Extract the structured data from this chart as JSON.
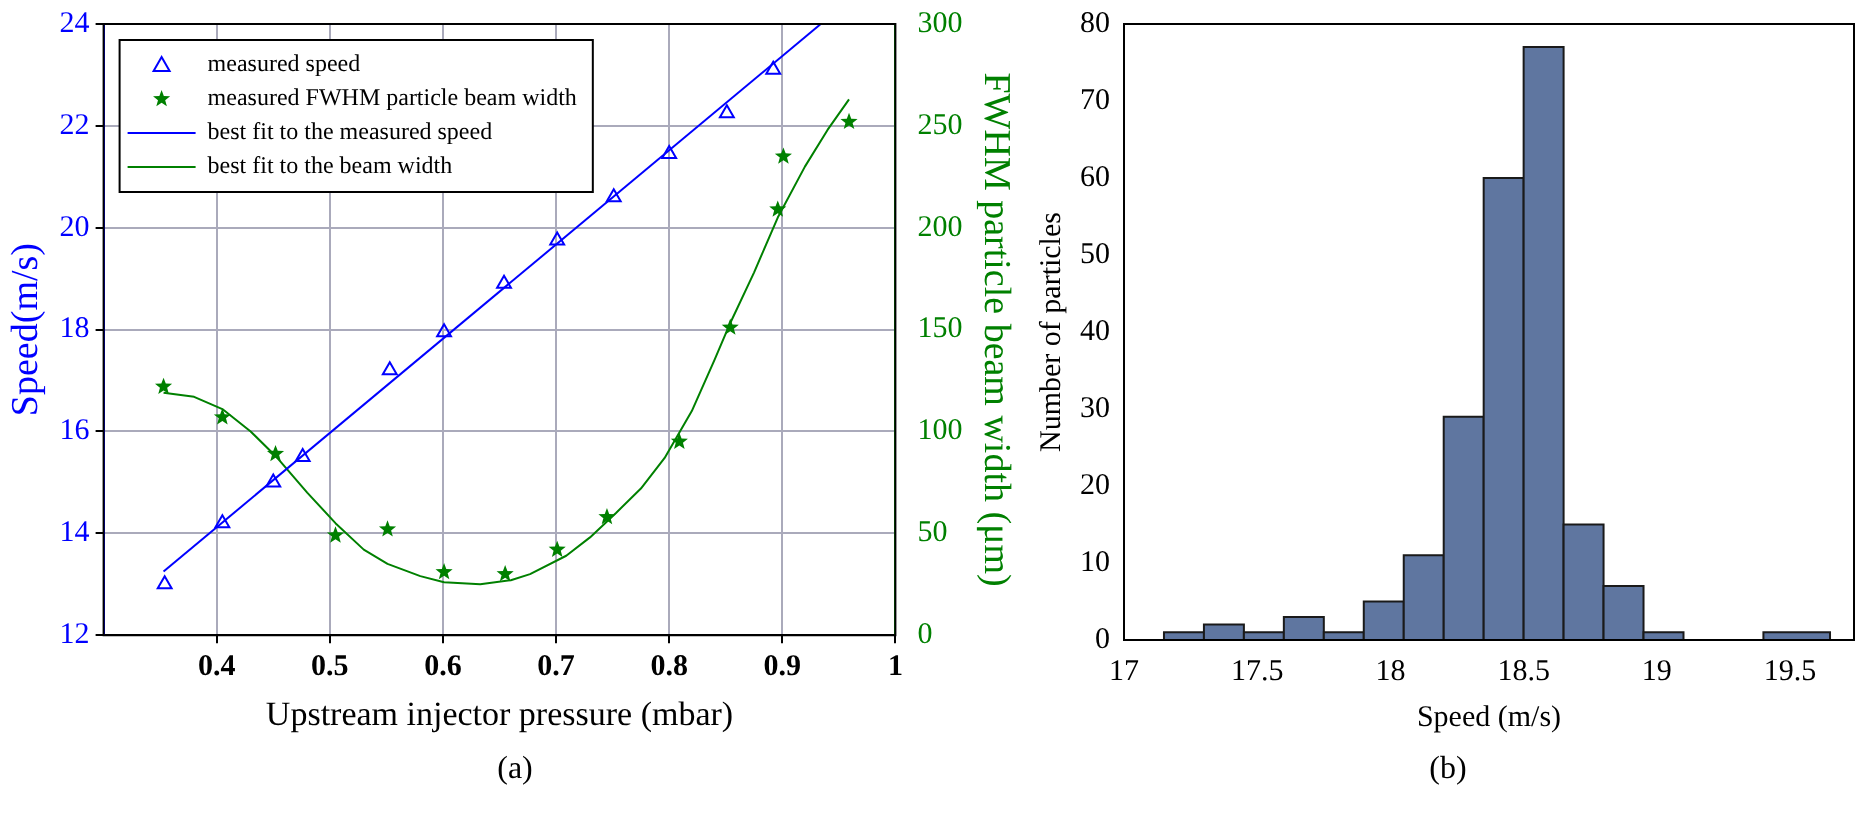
{
  "chart_data": [
    {
      "type": "scatter",
      "xlabel": "Upstream injector pressure (mbar)",
      "ylabel": "Speed(m/s)",
      "y2label": "FWHM particle beam width (μm)",
      "xlim": [
        0.3,
        1
      ],
      "xticks": [
        0.4,
        0.5,
        0.6,
        0.7,
        0.8,
        0.9,
        1
      ],
      "ylim": [
        12,
        24
      ],
      "yticks": [
        12,
        14,
        16,
        18,
        20,
        22,
        24
      ],
      "y2lim": [
        0,
        300
      ],
      "y2ticks": [
        0,
        50,
        100,
        150,
        200,
        250,
        300
      ],
      "grid": true,
      "legend": "top left",
      "annotations": [
        "(a)"
      ],
      "series": [
        {
          "name": "measured speed",
          "type": "scatter",
          "marker": "triangle",
          "color": "#0000ff",
          "x": [
            0.354,
            0.405,
            0.45,
            0.476,
            0.553,
            0.601,
            0.654,
            0.701,
            0.751,
            0.8,
            0.851,
            0.892
          ],
          "values": [
            13.0,
            14.2,
            15.0,
            15.5,
            17.2,
            17.95,
            18.9,
            19.75,
            20.6,
            21.45,
            22.25,
            23.1
          ]
        },
        {
          "name": "measured FWHM particle beam width",
          "type": "scatter",
          "marker": "star",
          "color": "#008000",
          "axis": "y2",
          "x": [
            0.353,
            0.405,
            0.452,
            0.505,
            0.551,
            0.601,
            0.655,
            0.701,
            0.745,
            0.809,
            0.854,
            0.896,
            0.901,
            0.959
          ],
          "values": [
            122,
            107,
            89,
            49,
            52,
            31,
            30,
            42,
            58,
            95,
            151,
            209,
            235,
            252
          ]
        },
        {
          "name": "best fit to the measured speed",
          "type": "line",
          "marker": "none",
          "color": "#0000ff",
          "x": [
            0.353,
            0.934
          ],
          "values": [
            13.25,
            24
          ]
        },
        {
          "name": "best fit to the beam width",
          "type": "line",
          "marker": "none",
          "color": "#008000",
          "axis": "y2",
          "x": [
            0.353,
            0.38,
            0.405,
            0.43,
            0.452,
            0.48,
            0.505,
            0.53,
            0.551,
            0.58,
            0.601,
            0.633,
            0.66,
            0.677,
            0.709,
            0.73,
            0.753,
            0.775,
            0.796,
            0.82,
            0.84,
            0.853,
            0.875,
            0.896,
            0.92,
            0.94,
            0.959
          ],
          "values": [
            119,
            117,
            111,
            100,
            88,
            70,
            55,
            42,
            35,
            29,
            26,
            25,
            27,
            30,
            39,
            48,
            60,
            72,
            87,
            110,
            135,
            152,
            178,
            205,
            230,
            248,
            263
          ]
        }
      ]
    },
    {
      "type": "histogram",
      "xlabel": "Speed (m/s)",
      "ylabel": "Number of particles",
      "color": "#5f76a0",
      "bins": [
        17.15,
        17.3,
        17.45,
        17.6,
        17.75,
        17.9,
        18.05,
        18.2,
        18.35,
        18.5,
        18.65,
        18.8,
        18.95,
        19.1,
        19.4,
        19.65
      ],
      "values": [
        1,
        2,
        1,
        3,
        1,
        5,
        11,
        29,
        60,
        77,
        15,
        7,
        1,
        0,
        1
      ],
      "xlim": [
        17,
        19.74
      ],
      "xticks": [
        17,
        17.5,
        18,
        18.5,
        19,
        19.5
      ],
      "ylim": [
        0,
        80
      ],
      "yticks": [
        0,
        10,
        20,
        30,
        40,
        50,
        60,
        70,
        80
      ],
      "annotations": [
        "(b)"
      ]
    }
  ]
}
